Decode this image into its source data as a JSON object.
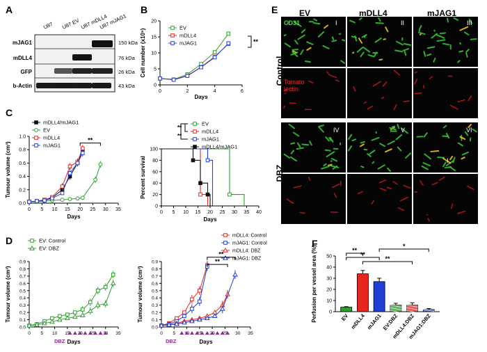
{
  "panel_labels": {
    "A": "A",
    "B": "B",
    "C": "C",
    "D": "D",
    "E": "E",
    "F": "F"
  },
  "colors": {
    "ev": "#2ca02c",
    "mdll4": "#e8261f",
    "mjag1": "#1f3fd6",
    "both": "#111111",
    "purple": "#8b2b94"
  },
  "blot": {
    "lanes": [
      "U87",
      "U87 EV",
      "U87 mDLL4",
      "U87 mJAG1"
    ],
    "rows": [
      {
        "label": "mJAG1",
        "kda": "150 kDa"
      },
      {
        "label": "mDLL4",
        "kda": "76 kDa"
      },
      {
        "label": "GFP",
        "kda": "26 kDa"
      },
      {
        "label": "b-Actin",
        "kda": "43 kDa"
      }
    ]
  },
  "panelB": {
    "sig": "**"
  },
  "panelC_survival": {
    "sig1": "**",
    "sig2": "**"
  },
  "panelC_tumour": {
    "sig": "**"
  },
  "panelD_right": {
    "sig1": "**",
    "sig2": "**"
  },
  "dbz": "DBZ",
  "panelE": {
    "cols": [
      "EV",
      "mDLL4",
      "mJAG1"
    ],
    "rows": [
      "Control",
      "DBZ"
    ],
    "tags": [
      "I",
      "II",
      "III",
      "IV",
      "V",
      "VI"
    ],
    "stain1": "CD31",
    "stain2a": "Tomato",
    "stain2b": "lectin",
    "inset": "I"
  },
  "panelF": {
    "sigs": [
      "**",
      "**",
      "**",
      "*"
    ]
  },
  "chart_data": [
    {
      "type": "line",
      "id": "B",
      "xlabel": "Days",
      "ylabel": "Cell number (x10⁵)",
      "xlim": [
        0,
        6
      ],
      "ylim": [
        0,
        20
      ],
      "xticks": [
        0,
        2,
        4,
        6
      ],
      "yticks": [
        0,
        5,
        10,
        15,
        20
      ],
      "series": [
        {
          "name": "EV",
          "x": [
            0,
            1,
            2,
            3,
            4,
            5
          ],
          "values": [
            2,
            1.7,
            3.3,
            6.5,
            10.2,
            16
          ]
        },
        {
          "name": "mDLL4",
          "x": [
            0,
            1,
            2,
            3,
            4,
            5
          ],
          "values": [
            2,
            1.6,
            2.9,
            5.6,
            8.8,
            12.8
          ]
        },
        {
          "name": "mJAG1",
          "x": [
            0,
            1,
            2,
            3,
            4,
            5
          ],
          "values": [
            2,
            1.6,
            2.8,
            5.5,
            8.6,
            13
          ]
        }
      ]
    },
    {
      "type": "line",
      "id": "C-left",
      "xlabel": "Days",
      "ylabel": "Tumour volume (cm³)",
      "xlim": [
        0,
        35
      ],
      "ylim": [
        0,
        1.0
      ],
      "xticks": [
        0,
        5,
        10,
        15,
        20,
        25,
        30,
        35
      ],
      "yticks": [
        0.0,
        0.2,
        0.4,
        0.6,
        0.8,
        1.0
      ],
      "series": [
        {
          "name": "mDLL4/mJAG1",
          "x": [
            0,
            3,
            6,
            9,
            13,
            16,
            19,
            21
          ],
          "values": [
            0.02,
            0.03,
            0.05,
            0.08,
            0.2,
            0.4,
            0.6,
            0.8
          ]
        },
        {
          "name": "EV",
          "x": [
            0,
            3,
            6,
            9,
            13,
            16,
            19,
            21,
            26,
            28
          ],
          "values": [
            0.02,
            0.02,
            0.03,
            0.04,
            0.05,
            0.06,
            0.07,
            0.08,
            0.35,
            0.58
          ]
        },
        {
          "name": "mDLL4",
          "x": [
            0,
            3,
            6,
            9,
            13,
            16,
            19,
            21
          ],
          "values": [
            0.02,
            0.03,
            0.05,
            0.09,
            0.25,
            0.55,
            0.62,
            0.82
          ]
        },
        {
          "name": "mJAG1",
          "x": [
            0,
            3,
            6,
            9,
            13,
            16,
            19,
            21
          ],
          "values": [
            0.02,
            0.03,
            0.04,
            0.07,
            0.15,
            0.45,
            0.6,
            0.75
          ]
        }
      ]
    },
    {
      "type": "line",
      "id": "C-right",
      "xlabel": "Days",
      "ylabel": "Percent survival",
      "xlim": [
        0,
        40
      ],
      "ylim": [
        0,
        100
      ],
      "xticks": [
        0,
        5,
        10,
        15,
        20,
        25,
        30,
        35,
        40
      ],
      "yticks": [
        0,
        20,
        40,
        60,
        80,
        100
      ],
      "series": [
        {
          "name": "EV",
          "x": [
            0,
            28,
            28,
            34,
            34
          ],
          "values": [
            100,
            100,
            20,
            20,
            0
          ]
        },
        {
          "name": "mDLL4",
          "x": [
            0,
            16,
            16,
            19,
            19
          ],
          "values": [
            100,
            100,
            20,
            20,
            0
          ]
        },
        {
          "name": "mJAG1",
          "x": [
            0,
            19,
            19,
            21,
            21
          ],
          "values": [
            100,
            100,
            80,
            80,
            0
          ]
        },
        {
          "name": "mDLL4/mJAG1",
          "x": [
            0,
            13,
            13,
            16,
            16,
            19,
            19,
            20,
            20
          ],
          "values": [
            100,
            100,
            80,
            80,
            40,
            40,
            20,
            20,
            0
          ]
        }
      ]
    },
    {
      "type": "line",
      "id": "D-left",
      "xlabel": "Days",
      "ylabel": "Tumour volume (cm³)",
      "xlim": [
        0,
        35
      ],
      "ylim": [
        0,
        0.9
      ],
      "xticks": [
        0,
        5,
        10,
        15,
        20,
        25,
        30,
        35
      ],
      "yticks": [
        0.0,
        0.1,
        0.2,
        0.3,
        0.4,
        0.5,
        0.6,
        0.7,
        0.8,
        0.9
      ],
      "series": [
        {
          "name": "EV: Control",
          "x": [
            0,
            3,
            6,
            9,
            12,
            15,
            18,
            21,
            24,
            27,
            30,
            33
          ],
          "values": [
            0.02,
            0.04,
            0.08,
            0.12,
            0.15,
            0.17,
            0.2,
            0.24,
            0.34,
            0.5,
            0.55,
            0.72
          ]
        },
        {
          "name": "EV: DBZ",
          "x": [
            0,
            3,
            6,
            9,
            12,
            15,
            18,
            21,
            24,
            27,
            30,
            33
          ],
          "values": [
            0.02,
            0.03,
            0.05,
            0.07,
            0.1,
            0.12,
            0.14,
            0.16,
            0.22,
            0.3,
            0.32,
            0.6
          ]
        }
      ],
      "dbz_days": [
        16,
        18,
        20,
        22,
        24,
        26,
        28,
        30
      ]
    },
    {
      "type": "line",
      "id": "D-right",
      "xlabel": "Days",
      "ylabel": "Tumour volume (cm³)",
      "xlim": [
        0,
        35
      ],
      "ylim": [
        0,
        0.9
      ],
      "xticks": [
        0,
        5,
        10,
        15,
        20,
        25,
        30,
        35
      ],
      "yticks": [
        0.0,
        0.1,
        0.2,
        0.3,
        0.4,
        0.5,
        0.6,
        0.7,
        0.8,
        0.9
      ],
      "series": [
        {
          "name": "mDLL4: Control",
          "x": [
            0,
            3,
            6,
            9,
            12,
            15,
            18
          ],
          "values": [
            0.02,
            0.05,
            0.12,
            0.2,
            0.38,
            0.5,
            0.85
          ]
        },
        {
          "name": "mJAG1: Control",
          "x": [
            0,
            3,
            6,
            9,
            12,
            15,
            18
          ],
          "values": [
            0.02,
            0.04,
            0.08,
            0.15,
            0.25,
            0.35,
            0.83
          ]
        },
        {
          "name": "mDLL4: DBZ",
          "x": [
            0,
            3,
            6,
            9,
            12,
            15,
            18,
            21,
            24,
            26
          ],
          "values": [
            0.02,
            0.03,
            0.05,
            0.08,
            0.1,
            0.12,
            0.15,
            0.2,
            0.3,
            0.45
          ]
        },
        {
          "name": "mJAG1: DBZ",
          "x": [
            0,
            3,
            6,
            9,
            12,
            15,
            18,
            21,
            24,
            29
          ],
          "values": [
            0.02,
            0.03,
            0.04,
            0.06,
            0.08,
            0.1,
            0.12,
            0.15,
            0.25,
            0.72
          ]
        }
      ],
      "dbz_days": [
        8,
        10,
        12,
        14,
        16,
        18,
        20,
        22,
        24,
        26
      ]
    },
    {
      "type": "bar",
      "id": "F",
      "ylabel": "Perfusion per vessel area (%)",
      "ylim": [
        0,
        50
      ],
      "yticks": [
        0,
        10,
        20,
        30,
        40,
        50
      ],
      "categories": [
        "EV",
        "mDLL4",
        "mJAG1",
        "EV:DBZ",
        "mDLL4:DBZ",
        "mJAG1:DBZ"
      ],
      "values": [
        4,
        34,
        27,
        6,
        6,
        2
      ],
      "errors": [
        0.5,
        3,
        3,
        1.5,
        2,
        0.8
      ]
    }
  ]
}
